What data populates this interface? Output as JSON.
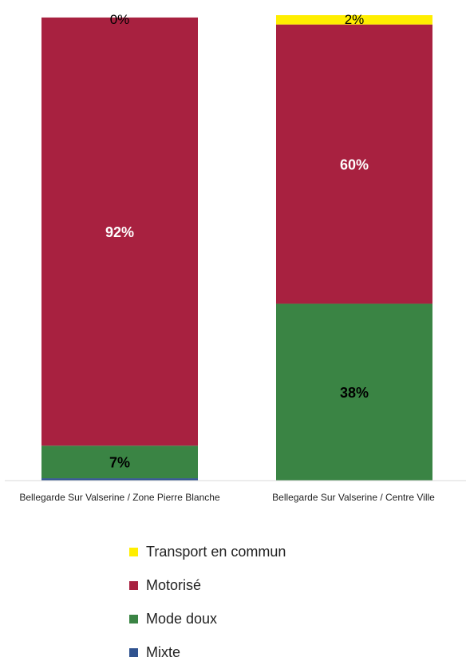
{
  "chart_data": {
    "type": "bar",
    "stacked": true,
    "categories": [
      "Bellegarde Sur Valserine / Zone Pierre Blanche",
      "Bellegarde Sur Valserine / Centre Ville"
    ],
    "series": [
      {
        "name": "Mixte",
        "color": "#2f528f",
        "values": [
          0.5,
          0
        ]
      },
      {
        "name": "Mode doux",
        "color": "#3a8444",
        "values": [
          7,
          38
        ]
      },
      {
        "name": "Motorisé",
        "color": "#a82140",
        "values": [
          92,
          60
        ]
      },
      {
        "name": "Transport en commun",
        "color": "#ffee00",
        "values": [
          0,
          2
        ]
      }
    ],
    "data_labels": [
      {
        "series": "Mode doux",
        "category": 0,
        "text": "7%",
        "color": "#000000",
        "bold": true
      },
      {
        "series": "Motorisé",
        "category": 0,
        "text": "92%",
        "color": "#ffffff",
        "bold": true
      },
      {
        "series": "Transport en commun",
        "category": 0,
        "text": "0%",
        "color": "#000000",
        "bold": false
      },
      {
        "series": "Mode doux",
        "category": 1,
        "text": "38%",
        "color": "#000000",
        "bold": true
      },
      {
        "series": "Motorisé",
        "category": 1,
        "text": "60%",
        "color": "#ffffff",
        "bold": true
      },
      {
        "series": "Transport en commun",
        "category": 1,
        "text": "2%",
        "color": "#000000",
        "bold": false
      }
    ],
    "ylim": [
      0,
      100
    ],
    "grid": false,
    "legend_position": "bottom"
  },
  "category_labels": [
    "Bellegarde Sur Valserine / Zone Pierre Blanche",
    "Bellegarde Sur Valserine / Centre Ville"
  ],
  "legend": [
    {
      "label": "Transport en commun",
      "color": "#ffee00"
    },
    {
      "label": "Motorisé",
      "color": "#a82140"
    },
    {
      "label": "Mode doux",
      "color": "#3a8444"
    },
    {
      "label": "Mixte",
      "color": "#2f528f"
    }
  ]
}
